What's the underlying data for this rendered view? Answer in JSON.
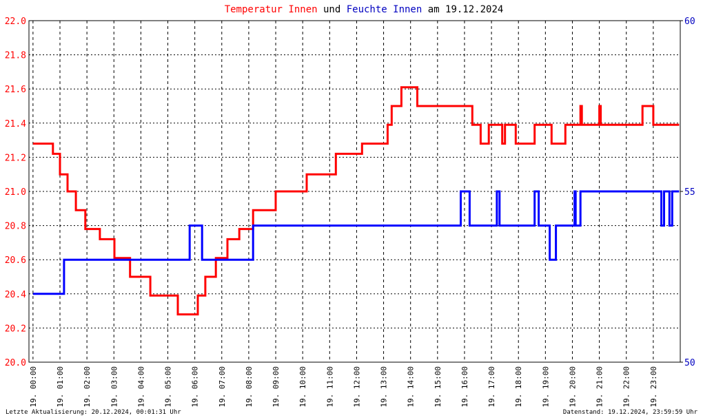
{
  "chart_data": {
    "type": "line",
    "title": [
      {
        "text": "Temperatur Innen",
        "color": "#ff0000"
      },
      {
        "text": "und",
        "color": "#000000"
      },
      {
        "text": "Feuchte Innen",
        "color": "#0000c0"
      },
      {
        "text": "am 19.12.2024",
        "color": "#000000"
      }
    ],
    "footer_left": "Letzte Aktualisierung: 20.12.2024, 00:01:31 Uhr",
    "footer_right": "Datenstand: 19.12.2024, 23:59:59 Uhr",
    "grid": true,
    "xlim": [
      -0.15,
      24.0
    ],
    "xticks": [
      {
        "value": 0,
        "label": "19. 00:00"
      },
      {
        "value": 1,
        "label": "19. 01:00"
      },
      {
        "value": 2,
        "label": "19. 02:00"
      },
      {
        "value": 3,
        "label": "19. 03:00"
      },
      {
        "value": 4,
        "label": "19. 04:00"
      },
      {
        "value": 5,
        "label": "19. 05:00"
      },
      {
        "value": 6,
        "label": "19. 06:00"
      },
      {
        "value": 7,
        "label": "19. 07:00"
      },
      {
        "value": 8,
        "label": "19. 08:00"
      },
      {
        "value": 9,
        "label": "19. 09:00"
      },
      {
        "value": 10,
        "label": "19. 10:00"
      },
      {
        "value": 11,
        "label": "19. 11:00"
      },
      {
        "value": 12,
        "label": "19. 12:00"
      },
      {
        "value": 13,
        "label": "19. 13:00"
      },
      {
        "value": 14,
        "label": "19. 14:00"
      },
      {
        "value": 15,
        "label": "19. 15:00"
      },
      {
        "value": 16,
        "label": "19. 16:00"
      },
      {
        "value": 17,
        "label": "19. 17:00"
      },
      {
        "value": 18,
        "label": "19. 18:00"
      },
      {
        "value": 19,
        "label": "19. 19:00"
      },
      {
        "value": 20,
        "label": "19. 20:00"
      },
      {
        "value": 21,
        "label": "19. 21:00"
      },
      {
        "value": 22,
        "label": "19. 22:00"
      },
      {
        "value": 23,
        "label": "19. 23:00"
      }
    ],
    "ylim": [
      20.0,
      22.0
    ],
    "yticks": [
      {
        "value": 20,
        "label": "20.0"
      },
      20.2,
      20.4,
      20.6,
      20.8,
      {
        "value": 21,
        "label": "21.0"
      },
      21.2,
      21.4,
      21.6,
      21.8,
      {
        "value": 22,
        "label": "22.0"
      }
    ],
    "ytick_color": "#ff0000",
    "y2lim": [
      50,
      60
    ],
    "y2ticks": [
      50,
      55,
      60
    ],
    "y2tick_color": "#0000c0",
    "series": [
      {
        "name": "Temperatur Innen",
        "color": "#ff0000",
        "x": [
          0,
          0.74,
          0.74,
          1.0,
          1.0,
          1.28,
          1.28,
          1.59,
          1.59,
          1.94,
          1.94,
          2.48,
          2.48,
          3.02,
          3.02,
          3.6,
          3.6,
          4.35,
          4.35,
          5.37,
          5.37,
          6.11,
          6.11,
          6.39,
          6.39,
          6.78,
          6.78,
          7.21,
          7.21,
          7.65,
          7.65,
          8.16,
          8.16,
          9.0,
          9.0,
          10.15,
          10.15,
          11.23,
          11.23,
          12.2,
          12.2,
          13.15,
          13.15,
          13.3,
          13.3,
          13.66,
          13.66,
          14.25,
          14.25,
          16.29,
          16.29,
          16.6,
          16.6,
          16.9,
          16.9,
          17.4,
          17.4,
          17.5,
          17.5,
          17.9,
          17.9,
          18.6,
          18.6,
          19.23,
          19.23,
          19.74,
          19.74,
          20.3,
          20.3,
          20.35,
          20.35,
          21.0,
          21.0,
          21.05,
          21.05,
          22.6,
          22.6,
          23.0,
          23.0,
          23.96
        ],
        "values": [
          21.28,
          21.28,
          21.22,
          21.22,
          21.1,
          21.1,
          21.0,
          21.0,
          20.89,
          20.89,
          20.78,
          20.78,
          20.72,
          20.72,
          20.61,
          20.61,
          20.5,
          20.5,
          20.39,
          20.39,
          20.28,
          20.28,
          20.39,
          20.39,
          20.5,
          20.5,
          20.61,
          20.61,
          20.72,
          20.72,
          20.78,
          20.78,
          20.89,
          20.89,
          21.0,
          21.0,
          21.1,
          21.1,
          21.22,
          21.22,
          21.28,
          21.28,
          21.39,
          21.39,
          21.5,
          21.5,
          21.61,
          21.61,
          21.5,
          21.5,
          21.39,
          21.39,
          21.28,
          21.28,
          21.39,
          21.39,
          21.28,
          21.28,
          21.39,
          21.39,
          21.28,
          21.28,
          21.39,
          21.39,
          21.28,
          21.28,
          21.39,
          21.39,
          21.5,
          21.5,
          21.39,
          21.39,
          21.5,
          21.5,
          21.39,
          21.39,
          21.5,
          21.5,
          21.39,
          21.39
        ]
      },
      {
        "name": "Feuchte Innen",
        "color": "#0000ff",
        "axis": "y2",
        "x": [
          0,
          1.15,
          1.15,
          5.81,
          5.81,
          6.27,
          6.27,
          8.16,
          8.16,
          15.86,
          15.86,
          16.19,
          16.19,
          17.2,
          17.2,
          17.3,
          17.3,
          18.6,
          18.6,
          18.75,
          18.75,
          19.16,
          19.16,
          19.39,
          19.39,
          20.08,
          20.08,
          20.12,
          20.12,
          20.3,
          20.3,
          23.3,
          23.3,
          23.4,
          23.4,
          23.6,
          23.6,
          23.7,
          23.7,
          23.96
        ],
        "values": [
          52,
          52,
          53,
          53,
          54,
          54,
          53,
          53,
          54,
          54,
          55,
          55,
          54,
          54,
          55,
          55,
          54,
          54,
          55,
          55,
          54,
          54,
          53,
          53,
          54,
          54,
          55,
          55,
          54,
          54,
          55,
          55,
          54,
          54,
          55,
          55,
          54,
          54,
          55,
          55
        ]
      }
    ]
  }
}
